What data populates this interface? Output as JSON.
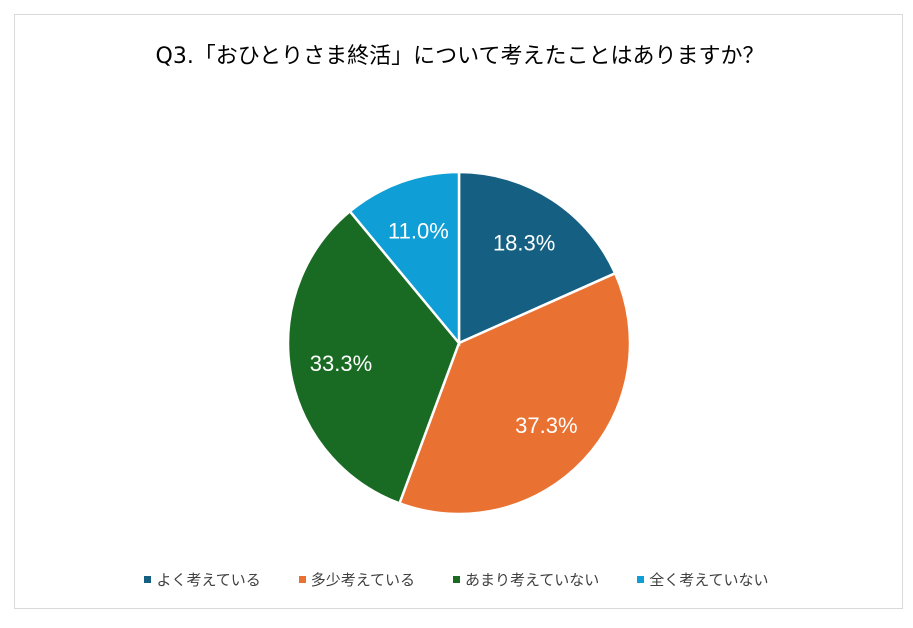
{
  "chart_data": {
    "type": "pie",
    "title": "Q3.「おひとりさま終活」について考えたことはありますか？",
    "categories": [
      "よく考えている",
      "多少考えている",
      "あまり考えていない",
      "全く考えていない"
    ],
    "values": [
      18.3,
      37.3,
      33.3,
      11.0
    ],
    "labels": [
      "18.3%",
      "37.3%",
      "33.3%",
      "11.0%"
    ],
    "colors": [
      "#156082",
      "#e97132",
      "#196b24",
      "#0f9ed5"
    ],
    "legend": "bottom",
    "start_angle": "top, clockwise"
  }
}
